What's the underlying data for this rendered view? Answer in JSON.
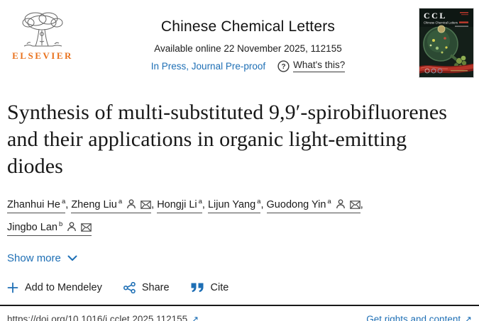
{
  "header": {
    "publisher_label": "ELSEVIER",
    "journal_title": "Chinese Chemical Letters",
    "availability": "Available online 22 November 2025, 112155",
    "status_link": "In Press, Journal Pre-proof",
    "whats_this_label": "What's this?",
    "cover": {
      "badge": "CCL",
      "subtitle": "Chinese Chemical Letters"
    }
  },
  "article": {
    "title": "Synthesis of multi-substituted 9,9′-spirobifluorenes and their applications in organic light-emitting diodes",
    "authors": [
      {
        "name": "Zhanhui He",
        "sup": "a",
        "profile": false,
        "email": false
      },
      {
        "name": "Zheng Liu",
        "sup": "a",
        "profile": true,
        "email": true
      },
      {
        "name": "Hongji Li",
        "sup": "a",
        "profile": false,
        "email": false
      },
      {
        "name": "Lijun Yang",
        "sup": "a",
        "profile": false,
        "email": false
      },
      {
        "name": "Guodong Yin",
        "sup": "a",
        "profile": true,
        "email": true
      },
      {
        "name": "Jingbo Lan",
        "sup": "b",
        "profile": true,
        "email": true
      }
    ],
    "author_separator": ", ",
    "show_more_label": "Show more"
  },
  "actions": {
    "mendeley_label": "Add to Mendeley",
    "share_label": "Share",
    "cite_label": "Cite"
  },
  "footer": {
    "doi": "https://doi.org/10.1016/j.cclet.2025.112155",
    "rights_label": "Get rights and content"
  },
  "colors": {
    "link_blue": "#1e6fb5",
    "elsevier_orange": "#e9711c",
    "status_red": "#c23b2e",
    "cover_background": "#141f19"
  }
}
